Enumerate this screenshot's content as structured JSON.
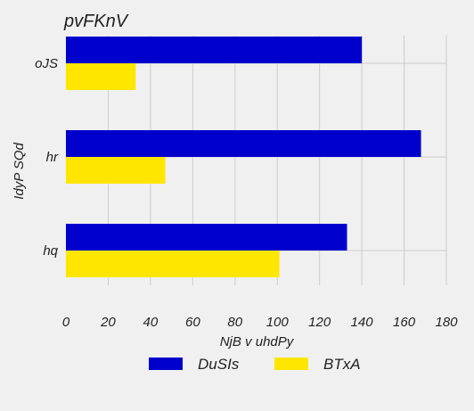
{
  "chart_data": {
    "type": "bar",
    "orientation": "horizontal",
    "title": "pvFKnV",
    "xlabel": "NjB v uhdPy",
    "ylabel": "IdyP SQd",
    "categories": [
      "oJS",
      "hr",
      "hq"
    ],
    "series": [
      {
        "name": "DuSIs",
        "color": "#0000cd",
        "values": [
          140,
          168,
          133
        ]
      },
      {
        "name": "BTxA",
        "color": "#ffe600",
        "values": [
          33,
          47,
          101
        ]
      }
    ],
    "xlim": [
      0,
      180
    ],
    "xticks": [
      0,
      20,
      40,
      60,
      80,
      100,
      120,
      140,
      160,
      180
    ],
    "grid": true,
    "legend_position": "bottom"
  }
}
